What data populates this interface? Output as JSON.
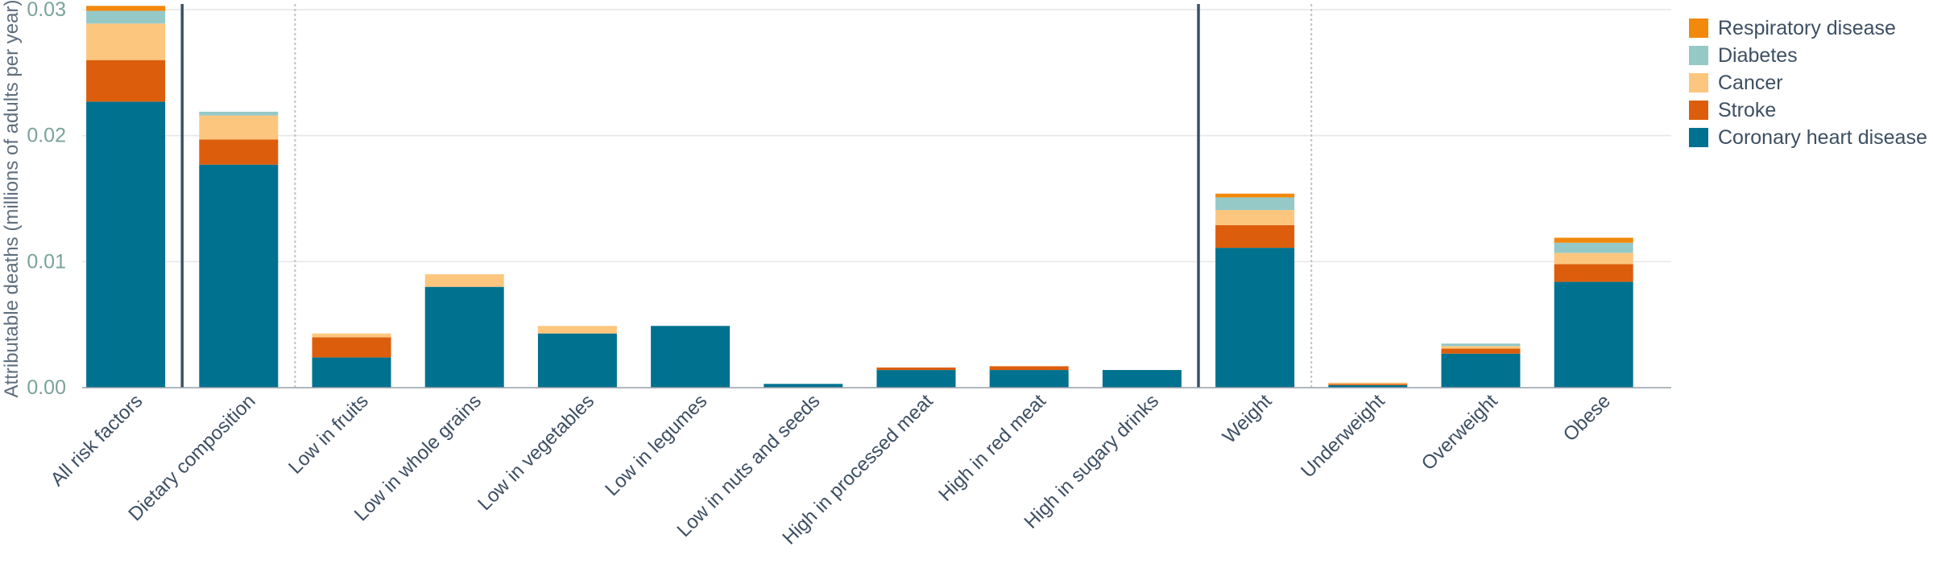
{
  "chart_data": {
    "type": "bar",
    "stacked": true,
    "ylabel": "Attributable deaths (millions of adults per year)",
    "xlabel": "",
    "ylim": [
      0,
      0.03
    ],
    "yticks": [
      "0.00",
      "0.01",
      "0.02",
      "0.03"
    ],
    "grid": true,
    "legend_position": "right",
    "categories": [
      "All risk factors",
      "Dietary composition",
      "Low in fruits",
      "Low in whole grains",
      "Low in vegetables",
      "Low in legumes",
      "Low in nuts and seeds",
      "High in processed meat",
      "High in red meat",
      "High in sugary drinks",
      "Weight",
      "Underweight",
      "Overweight",
      "Obese"
    ],
    "series": [
      {
        "name": "Coronary heart disease",
        "color": "#00718f",
        "values": [
          0.0227,
          0.0177,
          0.0024,
          0.008,
          0.0043,
          0.0049,
          0.0003,
          0.0014,
          0.0014,
          0.0014,
          0.0111,
          0.0002,
          0.0027,
          0.0084
        ]
      },
      {
        "name": "Stroke",
        "color": "#dc5e0c",
        "values": [
          0.0033,
          0.002,
          0.0016,
          0.0,
          0.0,
          0.0,
          0.0,
          0.0002,
          0.0003,
          0.0,
          0.0018,
          0.0001,
          0.0004,
          0.0014
        ]
      },
      {
        "name": "Cancer",
        "color": "#fdc67e",
        "values": [
          0.0029,
          0.0019,
          0.0003,
          0.001,
          0.0006,
          0.0,
          0.0,
          0.0,
          0.0,
          0.0,
          0.0012,
          0.0001,
          0.0002,
          0.0009
        ]
      },
      {
        "name": "Diabetes",
        "color": "#94c9c8",
        "values": [
          0.001,
          0.0003,
          0.0,
          0.0,
          0.0,
          0.0,
          0.0,
          0.0,
          0.0,
          0.0,
          0.001,
          0.0,
          0.0002,
          0.0008
        ]
      },
      {
        "name": "Respiratory disease",
        "color": "#f2890c",
        "values": [
          0.0004,
          0.0,
          0.0,
          0.0,
          0.0,
          0.0,
          0.0,
          0.0,
          0.0,
          0.0,
          0.0003,
          0.0,
          0.0,
          0.0004
        ]
      }
    ],
    "legend_order": [
      "Respiratory disease",
      "Diabetes",
      "Cancer",
      "Stroke",
      "Coronary heart disease"
    ],
    "group_separators": [
      {
        "after": "All risk factors",
        "style": "solid"
      },
      {
        "after": "Dietary composition",
        "style": "dotted"
      },
      {
        "after": "High in sugary drinks",
        "style": "solid"
      },
      {
        "after": "Weight",
        "style": "dotted"
      }
    ]
  }
}
